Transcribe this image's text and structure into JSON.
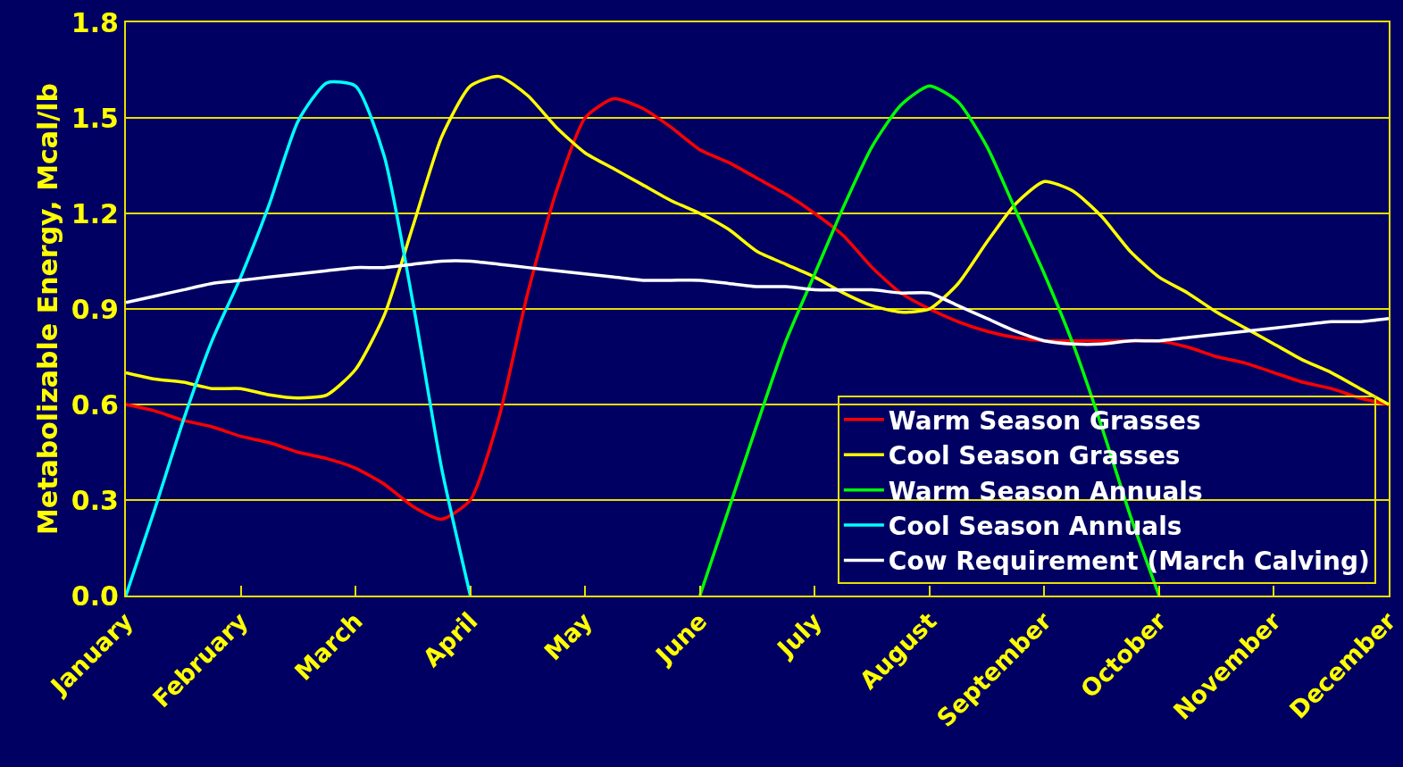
{
  "chart_data": {
    "type": "line",
    "ylabel": "Metabolizable Energy, Mcal/lb",
    "categories": [
      "January",
      null,
      null,
      null,
      "February",
      null,
      null,
      null,
      "March",
      null,
      null,
      null,
      "April",
      null,
      null,
      null,
      "May",
      null,
      null,
      null,
      "June",
      null,
      null,
      null,
      "July",
      null,
      null,
      null,
      "August",
      null,
      null,
      null,
      "September",
      null,
      null,
      null,
      "October",
      null,
      null,
      null,
      "November",
      null,
      null,
      null,
      "December"
    ],
    "ylim": [
      0,
      1.8
    ],
    "yticks": [
      {
        "value": 0,
        "label": "0.0"
      },
      0.3,
      0.6,
      0.9,
      1.2,
      1.5,
      1.8
    ],
    "grid": "y",
    "legend": "bottom right",
    "line_style": "solid",
    "series": [
      {
        "name": "Warm Season Grasses",
        "color": "#ff0000",
        "values": [
          0.6,
          0.58,
          0.55,
          0.53,
          0.5,
          0.48,
          0.45,
          0.43,
          0.4,
          0.35,
          0.28,
          0.24,
          0.3,
          0.56,
          0.95,
          1.27,
          1.5,
          1.56,
          1.53,
          1.47,
          1.4,
          1.36,
          1.31,
          1.26,
          1.2,
          1.13,
          1.03,
          0.95,
          0.9,
          0.86,
          0.83,
          0.81,
          0.8,
          0.8,
          0.8,
          0.8,
          0.8,
          0.78,
          0.75,
          0.73,
          0.7,
          0.67,
          0.65,
          0.62,
          0.6
        ]
      },
      {
        "name": "Cool Season Grasses",
        "color": "#ffff00",
        "values": [
          0.7,
          0.68,
          0.67,
          0.65,
          0.65,
          0.63,
          0.62,
          0.63,
          0.71,
          0.88,
          1.16,
          1.44,
          1.6,
          1.63,
          1.57,
          1.47,
          1.39,
          1.34,
          1.29,
          1.24,
          1.2,
          1.15,
          1.08,
          1.04,
          1.0,
          0.95,
          0.91,
          0.89,
          0.9,
          0.98,
          1.11,
          1.23,
          1.3,
          1.27,
          1.19,
          1.08,
          1.0,
          0.95,
          0.89,
          0.84,
          0.79,
          0.74,
          0.7,
          0.65,
          0.6
        ]
      },
      {
        "name": "Warm Season Annuals",
        "color": "#00ff00",
        "values": [
          null,
          null,
          null,
          null,
          null,
          null,
          null,
          null,
          null,
          null,
          null,
          null,
          null,
          null,
          null,
          null,
          null,
          null,
          null,
          null,
          0,
          0.27,
          0.54,
          0.8,
          1.01,
          1.22,
          1.41,
          1.54,
          1.6,
          1.55,
          1.41,
          1.21,
          1.01,
          0.79,
          0.53,
          0.25,
          0,
          null,
          null,
          null,
          null,
          null,
          null,
          null,
          null
        ]
      },
      {
        "name": "Cool Season Annuals",
        "color": "#00ffff",
        "values": [
          0,
          0.27,
          0.55,
          0.8,
          1.0,
          1.23,
          1.49,
          1.61,
          1.6,
          1.38,
          0.92,
          0.4,
          0,
          null,
          null,
          null,
          null,
          null,
          null,
          null,
          null,
          null,
          null,
          null,
          null,
          null,
          null,
          null,
          null,
          null,
          null,
          null,
          null,
          null,
          null,
          null,
          null,
          null,
          null,
          null,
          null,
          null,
          null,
          null,
          null
        ]
      },
      {
        "name": "Cow Requirement (March Calving)",
        "color": "#ffffff",
        "values": [
          0.92,
          0.94,
          0.96,
          0.98,
          0.99,
          1.0,
          1.01,
          1.02,
          1.03,
          1.03,
          1.04,
          1.05,
          1.05,
          1.04,
          1.03,
          1.02,
          1.01,
          1.0,
          0.99,
          0.99,
          0.99,
          0.98,
          0.97,
          0.97,
          0.96,
          0.96,
          0.96,
          0.95,
          0.95,
          0.91,
          0.87,
          0.83,
          0.8,
          0.79,
          0.79,
          0.8,
          0.8,
          0.81,
          0.82,
          0.83,
          0.84,
          0.85,
          0.86,
          0.86,
          0.87
        ]
      }
    ]
  }
}
